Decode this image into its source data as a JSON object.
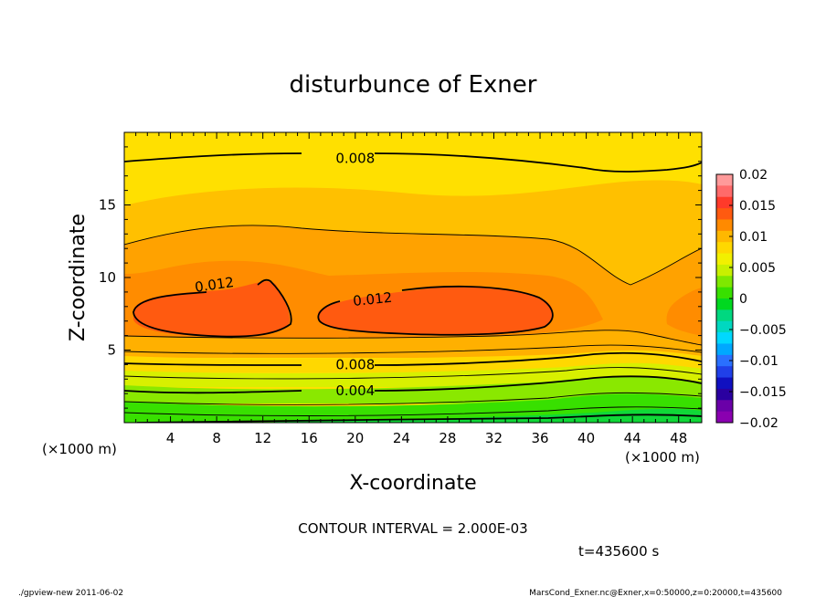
{
  "chart_data": {
    "type": "heatmap",
    "title": "disturbunce of Exner",
    "xlabel": "X-coordinate",
    "ylabel": "Z-coordinate",
    "x_unit": "(×1000 m)",
    "z_unit": "(×1000 m)",
    "xlim": [
      0,
      50
    ],
    "ylim": [
      0,
      20
    ],
    "x_ticks": [
      "4",
      "8",
      "12",
      "16",
      "20",
      "24",
      "28",
      "32",
      "36",
      "40",
      "44",
      "48"
    ],
    "y_ticks": [
      "5",
      "10",
      "15"
    ],
    "contour_interval_text": "CONTOUR INTERVAL = 2.000E-03",
    "time_text": "t=435600 s",
    "colorbar": {
      "ticks": [
        "0.02",
        "0.015",
        "0.01",
        "0.005",
        "0",
        "−0.005",
        "−0.01",
        "−0.015",
        "−0.02"
      ],
      "levels": [
        0.02,
        0.015,
        0.01,
        0.005,
        0,
        -0.005,
        -0.01,
        -0.015,
        -0.02
      ],
      "colors_top_to_bottom": [
        "#ff9a9a",
        "#ff6a6a",
        "#ff3a2a",
        "#ff5a10",
        "#ff8a00",
        "#ffb800",
        "#ffd800",
        "#f2f000",
        "#c8f000",
        "#7ee800",
        "#38e000",
        "#00d820",
        "#00d880",
        "#00d8c0",
        "#00d8ff",
        "#00a8ff",
        "#2a70ff",
        "#2040e8",
        "#1010c0",
        "#2a00a0",
        "#6a00a8",
        "#8a00b0"
      ]
    },
    "contour_labels": [
      {
        "text": "0.008",
        "x": 20.0,
        "z": 18.2
      },
      {
        "text": "0.012",
        "x": 7.8,
        "z": 9.5
      },
      {
        "text": "0.012",
        "x": 21.5,
        "z": 8.5
      },
      {
        "text": "0.008",
        "x": 20.0,
        "z": 4.0
      },
      {
        "text": "0.004",
        "x": 20.0,
        "z": 2.2
      }
    ]
  },
  "footer": {
    "left": "./gpview-new   2011-06-02",
    "right": "MarsCond_Exner.nc@Exner,x=0:50000,z=0:20000,t=435600"
  }
}
